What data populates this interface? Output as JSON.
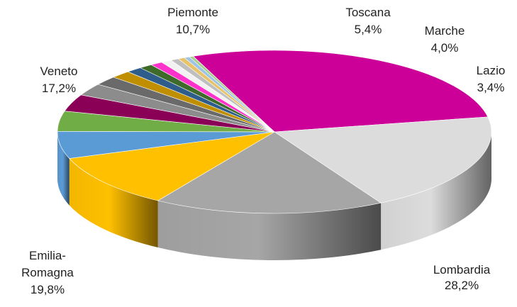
{
  "chart_data": {
    "type": "pie",
    "start_angle_deg": 248,
    "slices": [
      {
        "name": "Lombardia",
        "label": "Lombardia",
        "value_label": "28,2%",
        "value": 28.2,
        "color": "#CC0099"
      },
      {
        "name": "Emilia-Romagna",
        "label": "Emilia-",
        "label2": "Romagna",
        "value_label": "19,8%",
        "value": 19.8,
        "color": "#DCDCDC"
      },
      {
        "name": "Veneto",
        "label": "Veneto",
        "value_label": "17,2%",
        "value": 17.2,
        "color": "#A6A6A6"
      },
      {
        "name": "Piemonte",
        "label": "Piemonte",
        "value_label": "10,7%",
        "value": 10.7,
        "color": "#FFC000"
      },
      {
        "name": "Toscana",
        "label": "Toscana",
        "value_label": "5,4%",
        "value": 5.4,
        "color": "#5B9BD5"
      },
      {
        "name": "Marche",
        "label": "Marche",
        "value_label": "4,0%",
        "value": 4.0,
        "color": "#70AD47"
      },
      {
        "name": "Lazio",
        "label": "Lazio",
        "value_label": "3,4%",
        "value": 3.4,
        "color": "#8B0057"
      },
      {
        "name": "",
        "value": 2.4,
        "color": "#8C8C8C"
      },
      {
        "name": "",
        "value": 1.8,
        "color": "#6A6A6A"
      },
      {
        "name": "",
        "value": 1.5,
        "color": "#BF8F00"
      },
      {
        "name": "",
        "value": 1.2,
        "color": "#2E5D8C"
      },
      {
        "name": "",
        "value": 1.0,
        "color": "#3F6B2A"
      },
      {
        "name": "",
        "value": 0.9,
        "color": "#FF33CC"
      },
      {
        "name": "",
        "value": 0.8,
        "color": "#F2F2F2"
      },
      {
        "name": "",
        "value": 0.6,
        "color": "#BFBFBF"
      },
      {
        "name": "",
        "value": 0.5,
        "color": "#E7C36A"
      },
      {
        "name": "",
        "value": 0.4,
        "color": "#9DC3E6"
      },
      {
        "name": "",
        "value": 0.3,
        "color": "#A9D18E"
      }
    ],
    "title": "",
    "legend": "none"
  }
}
